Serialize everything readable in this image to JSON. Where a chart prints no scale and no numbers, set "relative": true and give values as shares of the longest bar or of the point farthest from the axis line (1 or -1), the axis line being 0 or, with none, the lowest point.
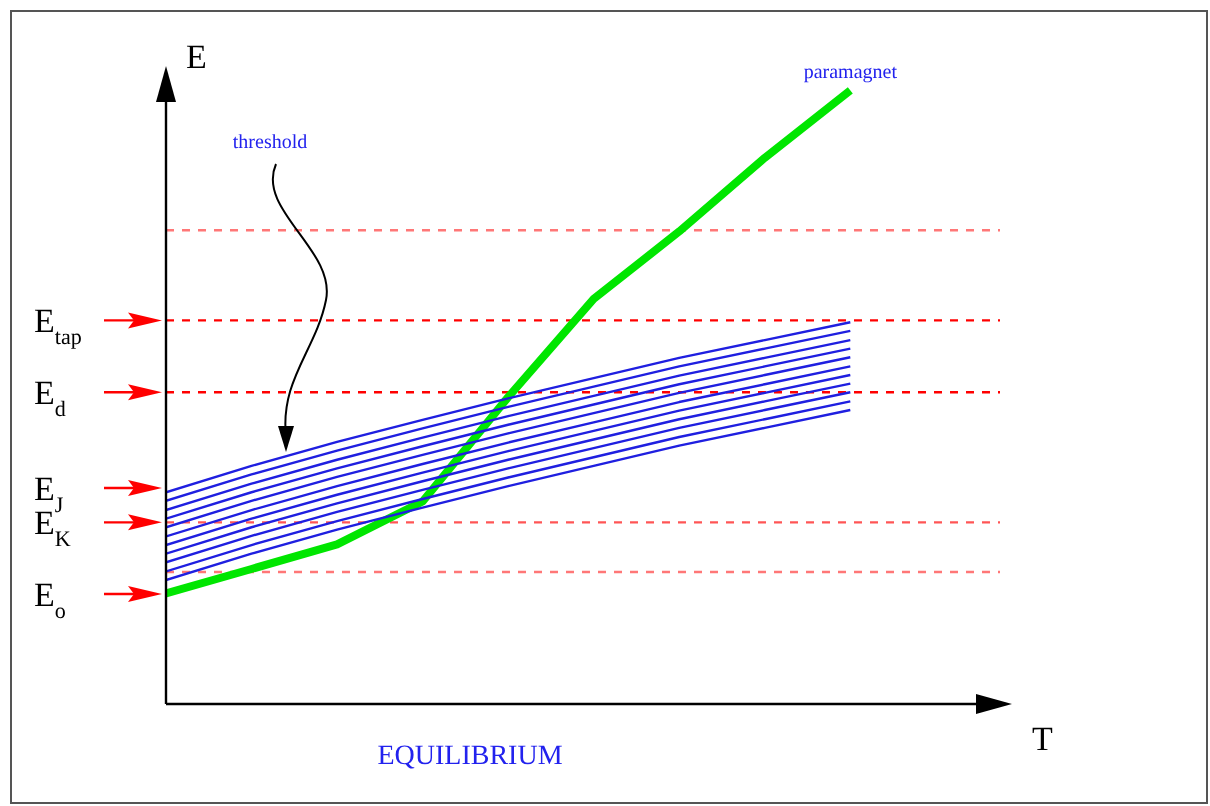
{
  "chart_data": {
    "type": "line",
    "relative": true,
    "xlabel": "T",
    "ylabel": "E",
    "categories": [
      null,
      null,
      null,
      null,
      null,
      null,
      null,
      null,
      null
    ],
    "series": [
      {
        "name": "paramagnet",
        "color": "#00e600",
        "values": [
          0.18,
          0.22,
          0.26,
          0.33,
          0.5,
          0.66,
          0.77,
          0.89,
          1
        ]
      },
      {
        "color": "#1f1fe0",
        "values": [
          0.345,
          0.388,
          0.427,
          0.463,
          0.498,
          0.531,
          0.564,
          0.593,
          0.622
        ]
      },
      {
        "color": "#1f1fe0",
        "values": [
          0.331,
          0.374,
          0.413,
          0.449,
          0.484,
          0.517,
          0.55,
          0.579,
          0.608
        ]
      },
      {
        "color": "#1f1fe0",
        "values": [
          0.316,
          0.359,
          0.398,
          0.434,
          0.469,
          0.502,
          0.535,
          0.564,
          0.593
        ]
      },
      {
        "color": "#1f1fe0",
        "values": [
          0.302,
          0.345,
          0.384,
          0.42,
          0.455,
          0.488,
          0.521,
          0.55,
          0.579
        ]
      },
      {
        "color": "#1f1fe0",
        "values": [
          0.288,
          0.331,
          0.37,
          0.406,
          0.441,
          0.474,
          0.507,
          0.536,
          0.565
        ]
      },
      {
        "color": "#1f1fe0",
        "values": [
          0.273,
          0.316,
          0.355,
          0.391,
          0.426,
          0.459,
          0.492,
          0.521,
          0.55
        ]
      },
      {
        "color": "#1f1fe0",
        "values": [
          0.259,
          0.302,
          0.341,
          0.377,
          0.412,
          0.445,
          0.478,
          0.507,
          0.536
        ]
      },
      {
        "color": "#1f1fe0",
        "values": [
          0.245,
          0.288,
          0.327,
          0.363,
          0.398,
          0.431,
          0.464,
          0.493,
          0.522
        ]
      },
      {
        "color": "#1f1fe0",
        "values": [
          0.231,
          0.274,
          0.313,
          0.349,
          0.384,
          0.417,
          0.45,
          0.479,
          0.508
        ]
      },
      {
        "color": "#1f1fe0",
        "values": [
          0.216,
          0.259,
          0.298,
          0.334,
          0.369,
          0.402,
          0.435,
          0.464,
          0.493
        ]
      },
      {
        "color": "#1f1fe0",
        "values": [
          0.202,
          0.245,
          0.284,
          0.32,
          0.355,
          0.388,
          0.421,
          0.45,
          0.479
        ]
      }
    ],
    "ref_lines": [
      {
        "axis": "y",
        "value": 0.772,
        "color": "#ff7777",
        "line_style": "dashed"
      },
      {
        "axis": "y",
        "value": 0.625,
        "label": "E$_{tap}$",
        "color": "#ff0000",
        "line_style": "dashed"
      },
      {
        "axis": "y",
        "value": 0.508,
        "label": "E$_{d}$",
        "color": "#ff0000",
        "line_style": "dashed"
      },
      {
        "axis": "y",
        "value": 0.296,
        "label": "E$_{K}$",
        "color": "#ff5555",
        "line_style": "dashed"
      },
      {
        "axis": "y",
        "value": 0.215,
        "color": "#ff7777",
        "line_style": "dashed"
      }
    ],
    "annotations": [
      "E$_{J}$",
      "E$_{o}$",
      "threshold",
      "EQUILIBRIUM"
    ]
  }
}
